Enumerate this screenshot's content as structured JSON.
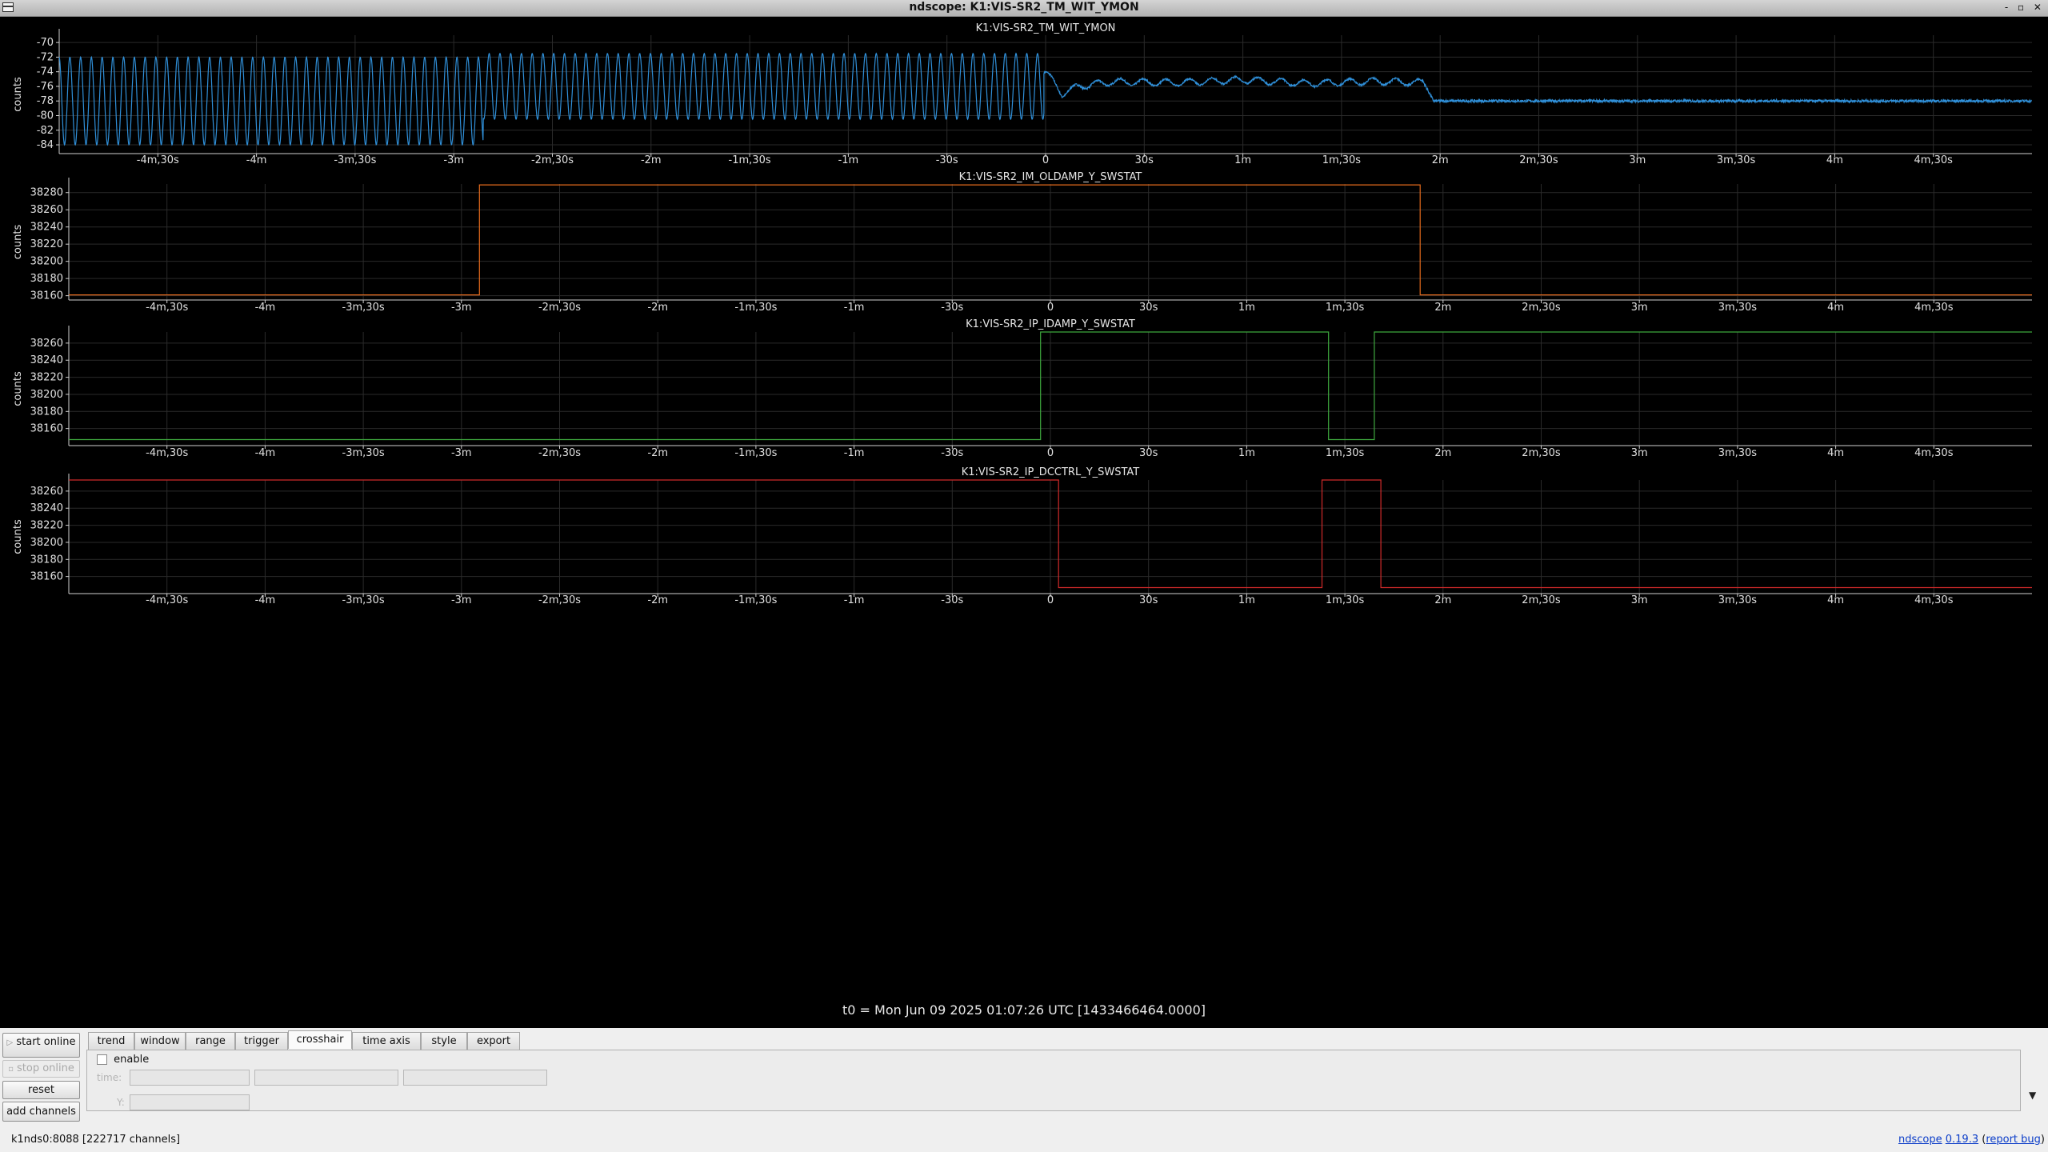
{
  "window": {
    "title": "ndscope: K1:VIS-SR2_TM_WIT_YMON",
    "buttons": "- ▫ ✕"
  },
  "x_axis": {
    "ticks": [
      "-4m,30s",
      "-4m",
      "-3m,30s",
      "-3m",
      "-2m,30s",
      "-2m",
      "-1m,30s",
      "-1m",
      "-30s",
      "0",
      "30s",
      "1m",
      "1m,30s",
      "2m",
      "2m,30s",
      "3m",
      "3m,30s",
      "4m",
      "4m,30s"
    ],
    "tick_values_s": [
      -270,
      -240,
      -210,
      -180,
      -150,
      -120,
      -90,
      -60,
      -30,
      0,
      30,
      60,
      90,
      120,
      150,
      180,
      210,
      240,
      270
    ],
    "range_s": [
      -300,
      300
    ]
  },
  "t0_label": "t0 = Mon Jun 09 2025 01:07:26 UTC [1433466464.0000]",
  "colors": {
    "series1": "#2f8fd8",
    "series2": "#e36a1c",
    "series3": "#3ea83e",
    "series4": "#d02a2a",
    "grid": "#2a2a2a",
    "axis": "#cfcfcf"
  },
  "chart_data": [
    {
      "type": "line",
      "title": "K1:VIS-SR2_TM_WIT_YMON",
      "ylabel": "counts",
      "yticks": [
        "-70",
        "-72",
        "-74",
        "-76",
        "-78",
        "-80",
        "-82",
        "-84"
      ],
      "ytick_values": [
        -70,
        -72,
        -74,
        -76,
        -78,
        -80,
        -82,
        -84
      ],
      "ylim": [
        -85.2,
        -69
      ],
      "grid": true,
      "segments": [
        {
          "x_range_s": [
            -300,
            -171
          ],
          "form": "sinusoid",
          "mean": -78,
          "amplitude": 6,
          "period_s": 3.27
        },
        {
          "x_range_s": [
            -171,
            -0.5
          ],
          "form": "sinusoid",
          "mean": -76,
          "amplitude": 4.5,
          "period_s": 3.27
        },
        {
          "x_range_s": [
            -0.5,
            115
          ],
          "form": "settling",
          "x": [
            0,
            5,
            10,
            20,
            40,
            60,
            80,
            100,
            115
          ],
          "y": [
            -74,
            -77,
            -76,
            -75.4,
            -75.5,
            -75.1,
            -75.6,
            -75.3,
            -75.5
          ]
        },
        {
          "x_range_s": [
            115,
            300
          ],
          "form": "flat_noisy",
          "x": [
            115,
            118,
            300
          ],
          "y": [
            -75.5,
            -78,
            -78
          ]
        }
      ]
    },
    {
      "type": "line",
      "title": "K1:VIS-SR2_IM_OLDAMP_Y_SWSTAT",
      "ylabel": "counts",
      "yticks": [
        "38280",
        "38260",
        "38240",
        "38220",
        "38200",
        "38180",
        "38160"
      ],
      "ytick_values": [
        38280,
        38260,
        38240,
        38220,
        38200,
        38180,
        38160
      ],
      "ylim": [
        38155,
        38290
      ],
      "grid": true,
      "x": [
        -300,
        -174.5,
        -174.5,
        113,
        113,
        300
      ],
      "y": [
        38161,
        38161,
        38289,
        38289,
        38161,
        38161
      ]
    },
    {
      "type": "line",
      "title": "K1:VIS-SR2_IP_IDAMP_Y_SWSTAT",
      "ylabel": "counts",
      "yticks": [
        "38260",
        "38240",
        "38220",
        "38200",
        "38180",
        "38160"
      ],
      "ytick_values": [
        38260,
        38240,
        38220,
        38200,
        38180,
        38160
      ],
      "ylim": [
        38140,
        38273
      ],
      "grid": true,
      "x": [
        -300,
        -3,
        -3,
        85,
        85,
        99,
        99,
        300
      ],
      "y": [
        38147,
        38147,
        38273,
        38273,
        38147,
        38147,
        38273,
        38273
      ]
    },
    {
      "type": "line",
      "title": "K1:VIS-SR2_IP_DCCTRL_Y_SWSTAT",
      "ylabel": "counts",
      "yticks": [
        "38260",
        "38240",
        "38220",
        "38200",
        "38180",
        "38160"
      ],
      "ytick_values": [
        38260,
        38240,
        38220,
        38200,
        38180,
        38160
      ],
      "ylim": [
        38140,
        38273
      ],
      "grid": true,
      "x": [
        -300,
        2.5,
        2.5,
        83,
        83,
        101,
        101,
        300
      ],
      "y": [
        38273,
        38273,
        38147,
        38147,
        38273,
        38273,
        38147,
        38147
      ]
    }
  ],
  "controls": {
    "start_online": "start online",
    "stop_online": "stop online",
    "reset": "reset",
    "add_channels": "add channels",
    "tabs": [
      "trend",
      "window",
      "range",
      "trigger",
      "crosshair",
      "time axis",
      "style",
      "export"
    ],
    "active_tab": "crosshair",
    "enable_label": "enable",
    "time_label": "time:",
    "y_label": "Y:"
  },
  "status": {
    "server": "k1nds0:8088  [222717 channels]",
    "app_name": "ndscope",
    "version": "0.19.3",
    "report": "report bug"
  }
}
